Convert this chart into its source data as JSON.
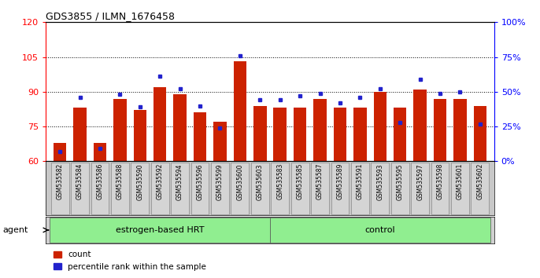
{
  "title": "GDS3855 / ILMN_1676458",
  "samples": [
    "GSM535582",
    "GSM535584",
    "GSM535586",
    "GSM535588",
    "GSM535590",
    "GSM535592",
    "GSM535594",
    "GSM535596",
    "GSM535599",
    "GSM535600",
    "GSM535603",
    "GSM535583",
    "GSM535585",
    "GSM535587",
    "GSM535589",
    "GSM535591",
    "GSM535593",
    "GSM535595",
    "GSM535597",
    "GSM535598",
    "GSM535601",
    "GSM535602"
  ],
  "counts": [
    68,
    83,
    68,
    87,
    82,
    92,
    89,
    81,
    77,
    103,
    84,
    83,
    83,
    87,
    83,
    83,
    90,
    83,
    91,
    87,
    87,
    84
  ],
  "percentiles": [
    7,
    46,
    9,
    48,
    39,
    61,
    52,
    40,
    24,
    76,
    44,
    44,
    47,
    49,
    42,
    46,
    52,
    28,
    59,
    49,
    50,
    27
  ],
  "groups": [
    "estrogen-based HRT",
    "estrogen-based HRT",
    "estrogen-based HRT",
    "estrogen-based HRT",
    "estrogen-based HRT",
    "estrogen-based HRT",
    "estrogen-based HRT",
    "estrogen-based HRT",
    "estrogen-based HRT",
    "estrogen-based HRT",
    "estrogen-based HRT",
    "control",
    "control",
    "control",
    "control",
    "control",
    "control",
    "control",
    "control",
    "control",
    "control",
    "control"
  ],
  "group_labels": [
    "estrogen-based HRT",
    "control"
  ],
  "bar_color": "#cc2200",
  "percentile_color": "#2222cc",
  "left_ylim": [
    60,
    120
  ],
  "left_yticks": [
    60,
    75,
    90,
    105,
    120
  ],
  "right_ytick_vals": [
    0,
    25,
    50,
    75,
    100
  ],
  "bg_plot": "#ffffff",
  "bg_xticklabels": "#cccccc",
  "green_color": "#90ee90"
}
